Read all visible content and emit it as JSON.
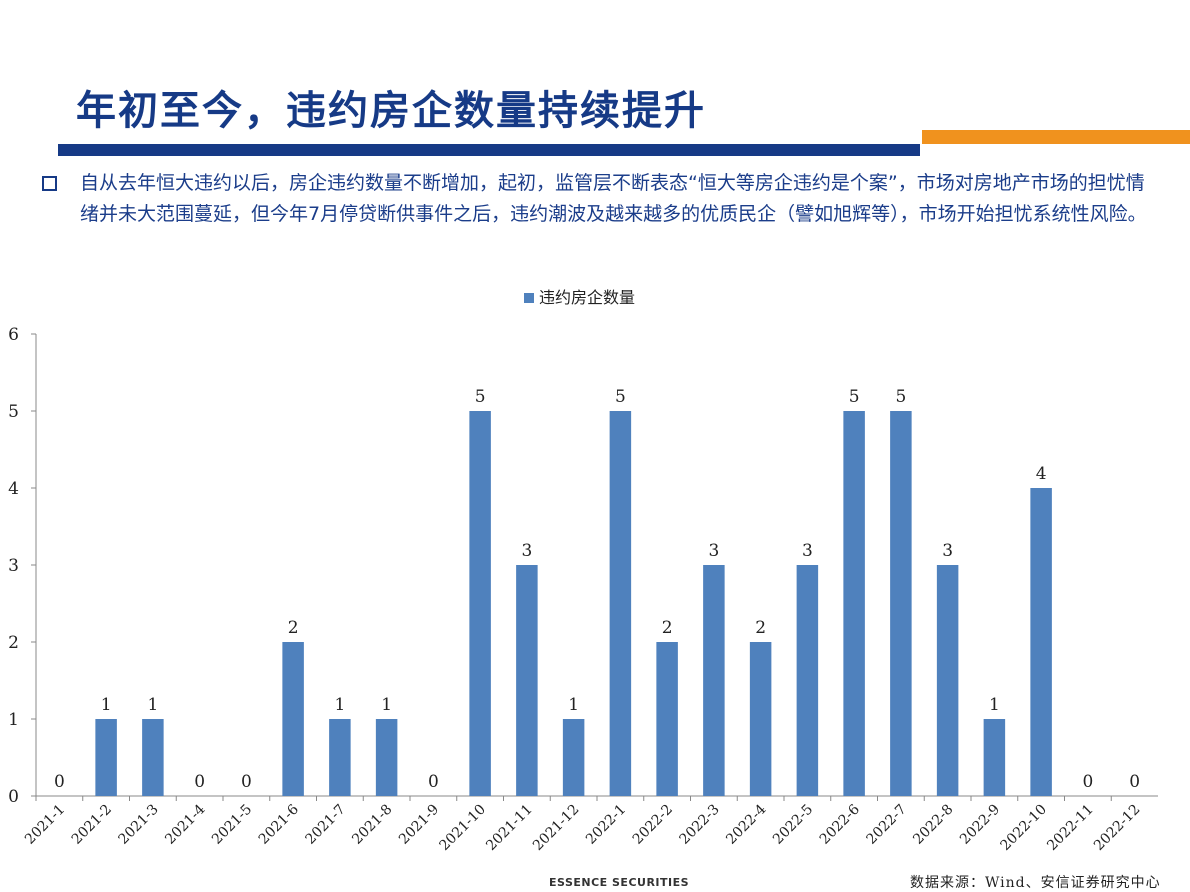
{
  "title": "年初至今，违约房企数量持续提升",
  "intro": "自从去年恒大违约以后，房企违约数量不断增加，起初，监管层不断表态“恒大等房企违约是个案”，市场对房地产市场的担忧情绪并未大范围蔓延，但今年7月停贷断供事件之后，违约潮波及越来越多的优质民企（譬如旭辉等），市场开始担忧系统性风险。",
  "colors": {
    "bar": "#4f81bd",
    "title": "#163a86",
    "accent": "#f0921e"
  },
  "chart_data": {
    "type": "bar",
    "legend": "违约房企数量",
    "legend_position": "top",
    "categories": [
      "2021-1",
      "2021-2",
      "2021-3",
      "2021-4",
      "2021-5",
      "2021-6",
      "2021-7",
      "2021-8",
      "2021-9",
      "2021-10",
      "2021-11",
      "2021-12",
      "2022-1",
      "2022-2",
      "2022-3",
      "2022-4",
      "2022-5",
      "2022-6",
      "2022-7",
      "2022-8",
      "2022-9",
      "2022-10",
      "2022-11",
      "2022-12"
    ],
    "series": [
      {
        "name": "违约房企数量",
        "values": [
          0,
          1,
          1,
          0,
          0,
          2,
          1,
          1,
          0,
          5,
          3,
          1,
          5,
          2,
          3,
          2,
          3,
          5,
          5,
          3,
          1,
          4,
          0,
          0
        ]
      }
    ],
    "ylim": [
      0,
      6
    ],
    "yticks": [
      0,
      1,
      2,
      3,
      4,
      5,
      6
    ],
    "grid": false,
    "data_labels": true
  },
  "footer": {
    "brand": "ESSENCE SECURITIES",
    "source": "数据来源：Wind、安信证券研究中心"
  }
}
